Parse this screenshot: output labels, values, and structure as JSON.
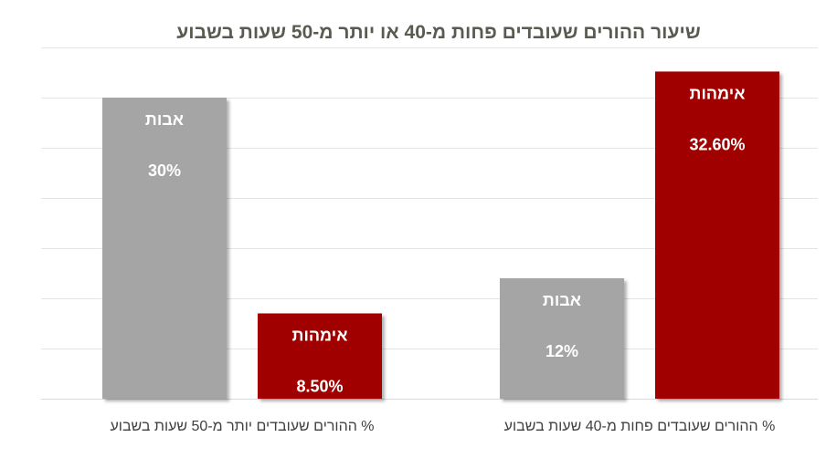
{
  "chart_data": {
    "type": "bar",
    "title": "שיעור ההורים שעובדים פחות מ-40 או יותר מ-50 שעות בשבוע",
    "categories": [
      "% ההורים שעובדים פחות מ-40 שעות בשבוע",
      "% ההורים שעובדים יותר מ-50 שעות בשבוע"
    ],
    "series": [
      {
        "name": "אימהות",
        "values": [
          32.6,
          8.5
        ],
        "value_labels": [
          "32.60%",
          "8.50%"
        ],
        "color": "#a00000"
      },
      {
        "name": "אבות",
        "values": [
          12,
          30
        ],
        "value_labels": [
          "12%",
          "30%"
        ],
        "color": "#a5a5a5"
      }
    ],
    "ylim": [
      0,
      35
    ],
    "grid": true,
    "xlabel": "",
    "ylabel": ""
  }
}
